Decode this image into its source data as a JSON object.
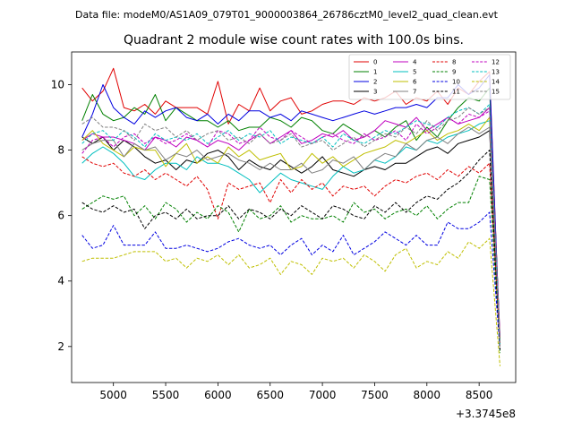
{
  "chart_data": {
    "type": "line",
    "suptitle": "Data file: modeM0/AS1A09_079T01_9000003864_26786cztM0_level2_quad_clean.evt",
    "title": "Quadrant 2 module wise count rates with 100.0s bins.",
    "xlabel": "",
    "ylabel": "",
    "x_offset_label": "+3.3745e8",
    "xlim": [
      4600,
      8850
    ],
    "ylim": [
      0.9,
      11.0
    ],
    "xticks": [
      5000,
      5500,
      6000,
      6500,
      7000,
      7500,
      8000,
      8500
    ],
    "yticks": [
      2,
      4,
      6,
      8,
      10
    ],
    "grid": false,
    "legend_position": "top-right",
    "legend_columns": 4,
    "x": [
      4700,
      4800,
      4900,
      5000,
      5100,
      5200,
      5300,
      5400,
      5500,
      5600,
      5700,
      5800,
      5900,
      6000,
      6100,
      6200,
      6300,
      6400,
      6500,
      6600,
      6700,
      6800,
      6900,
      7000,
      7100,
      7200,
      7300,
      7400,
      7500,
      7600,
      7700,
      7800,
      7900,
      8000,
      8100,
      8200,
      8300,
      8400,
      8500,
      8600,
      8700
    ],
    "series": [
      {
        "name": "0",
        "color": "#e00000",
        "dash": "solid",
        "values": [
          9.9,
          9.5,
          9.8,
          10.5,
          9.3,
          9.2,
          9.4,
          9.1,
          9.5,
          9.3,
          9.3,
          9.3,
          9.1,
          10.1,
          8.8,
          9.4,
          9.2,
          9.9,
          9.2,
          9.5,
          9.6,
          9.1,
          9.2,
          9.4,
          9.5,
          9.5,
          9.4,
          9.6,
          9.5,
          9.6,
          9.8,
          9.4,
          9.6,
          9.5,
          9.8,
          9.4,
          9.9,
          9.7,
          10.1,
          10.4,
          2.0
        ]
      },
      {
        "name": "1",
        "color": "#008000",
        "dash": "solid",
        "values": [
          8.9,
          9.7,
          9.1,
          8.9,
          9.0,
          9.3,
          9.1,
          9.7,
          8.9,
          9.3,
          9.1,
          8.9,
          8.9,
          8.7,
          8.9,
          8.6,
          8.7,
          8.7,
          9.0,
          8.9,
          8.7,
          9.0,
          8.9,
          8.6,
          8.5,
          8.8,
          8.6,
          8.4,
          8.6,
          8.4,
          8.7,
          8.9,
          8.3,
          8.7,
          8.4,
          8.9,
          9.3,
          9.6,
          9.5,
          9.9,
          2.2
        ]
      },
      {
        "name": "2",
        "color": "#0000e0",
        "dash": "solid",
        "values": [
          8.4,
          9.1,
          10.0,
          9.3,
          9.0,
          8.8,
          9.2,
          9.0,
          9.2,
          9.3,
          9.0,
          8.9,
          9.1,
          8.8,
          9.1,
          8.9,
          9.2,
          9.2,
          9.0,
          9.1,
          8.9,
          9.2,
          9.1,
          9.0,
          8.9,
          9.0,
          9.1,
          9.2,
          9.1,
          9.2,
          9.3,
          9.3,
          9.4,
          9.3,
          9.6,
          9.6,
          10.0,
          9.7,
          9.9,
          10.3,
          2.0
        ]
      },
      {
        "name": "3",
        "color": "#000000",
        "dash": "solid",
        "values": [
          8.4,
          8.2,
          8.4,
          8.0,
          8.3,
          8.1,
          7.8,
          7.6,
          7.7,
          7.4,
          7.7,
          7.6,
          7.9,
          8.0,
          7.8,
          7.4,
          7.7,
          7.5,
          7.4,
          7.7,
          7.5,
          7.3,
          7.5,
          7.8,
          7.4,
          7.3,
          7.2,
          7.4,
          7.5,
          7.4,
          7.6,
          7.6,
          7.8,
          8.0,
          8.1,
          7.9,
          8.2,
          8.3,
          8.4,
          8.6,
          2.0
        ]
      },
      {
        "name": "4",
        "color": "#bf00bf",
        "dash": "solid",
        "values": [
          8.3,
          8.5,
          8.4,
          8.4,
          8.3,
          8.2,
          8.0,
          8.4,
          8.3,
          8.1,
          8.4,
          8.3,
          8.1,
          8.3,
          8.2,
          8.0,
          8.3,
          8.5,
          8.2,
          8.4,
          8.6,
          8.2,
          8.3,
          8.5,
          8.4,
          8.6,
          8.3,
          8.4,
          8.6,
          8.9,
          8.8,
          8.7,
          9.0,
          8.6,
          8.8,
          9.0,
          8.8,
          8.9,
          9.0,
          9.3,
          2.3
        ]
      },
      {
        "name": "5",
        "color": "#00bfbf",
        "dash": "solid",
        "values": [
          7.6,
          7.9,
          8.1,
          7.9,
          7.6,
          7.2,
          7.1,
          7.4,
          7.6,
          7.6,
          7.4,
          7.8,
          7.6,
          7.6,
          7.5,
          7.3,
          7.1,
          6.7,
          7.0,
          7.3,
          7.1,
          7.0,
          6.9,
          6.8,
          7.2,
          7.5,
          7.3,
          7.4,
          7.7,
          7.6,
          7.8,
          8.1,
          8.0,
          8.3,
          8.2,
          8.4,
          8.5,
          8.6,
          8.8,
          8.9,
          2.0
        ]
      },
      {
        "name": "6",
        "color": "#bfbf00",
        "dash": "solid",
        "values": [
          8.3,
          8.6,
          8.2,
          8.0,
          7.8,
          8.1,
          8.0,
          8.0,
          7.5,
          7.9,
          8.2,
          7.6,
          7.8,
          7.6,
          8.1,
          7.8,
          8.0,
          7.7,
          7.8,
          7.9,
          7.4,
          7.5,
          7.9,
          7.6,
          7.8,
          7.5,
          7.7,
          7.9,
          8.0,
          8.1,
          8.3,
          8.2,
          8.4,
          8.6,
          8.3,
          8.5,
          8.6,
          8.8,
          8.6,
          9.0,
          2.1
        ]
      },
      {
        "name": "7",
        "color": "#808080",
        "dash": "solid",
        "values": [
          8.0,
          8.2,
          8.3,
          8.3,
          7.8,
          8.2,
          8.0,
          8.1,
          7.7,
          7.9,
          7.8,
          8.0,
          7.7,
          7.8,
          7.9,
          7.7,
          7.6,
          7.4,
          7.6,
          7.4,
          7.4,
          7.6,
          7.3,
          7.4,
          7.7,
          7.6,
          7.8,
          7.4,
          7.7,
          7.9,
          7.8,
          8.2,
          8.0,
          8.3,
          8.4,
          8.2,
          8.5,
          8.7,
          8.5,
          8.7,
          2.1
        ]
      },
      {
        "name": "8",
        "color": "#e00000",
        "dash": "dashed",
        "values": [
          7.8,
          7.6,
          7.5,
          7.6,
          7.3,
          7.2,
          7.4,
          7.1,
          7.3,
          7.1,
          6.9,
          7.2,
          6.8,
          5.9,
          7.0,
          6.8,
          6.9,
          7.0,
          6.4,
          7.1,
          6.7,
          7.1,
          6.8,
          7.0,
          6.6,
          6.9,
          6.8,
          6.9,
          6.6,
          6.9,
          7.1,
          7.0,
          7.2,
          7.3,
          7.1,
          7.4,
          7.2,
          7.5,
          7.3,
          7.6,
          2.0
        ]
      },
      {
        "name": "9",
        "color": "#008000",
        "dash": "dashed",
        "values": [
          6.2,
          6.4,
          6.6,
          6.5,
          6.6,
          6.0,
          6.3,
          5.9,
          6.4,
          6.2,
          5.8,
          6.1,
          5.9,
          6.3,
          6.1,
          5.5,
          6.2,
          5.9,
          6.0,
          6.3,
          5.8,
          6.0,
          5.9,
          5.9,
          6.0,
          5.8,
          6.4,
          6.1,
          6.2,
          5.9,
          6.1,
          6.2,
          6.0,
          6.3,
          5.9,
          6.2,
          6.4,
          6.4,
          7.2,
          7.1,
          1.8
        ]
      },
      {
        "name": "10",
        "color": "#0000e0",
        "dash": "dashed",
        "values": [
          5.4,
          5.0,
          5.1,
          5.7,
          5.1,
          5.1,
          5.1,
          5.5,
          5.0,
          5.0,
          5.1,
          5.0,
          4.9,
          5.0,
          5.2,
          5.3,
          5.1,
          5.0,
          5.1,
          4.8,
          5.1,
          5.3,
          4.8,
          5.1,
          4.9,
          5.4,
          4.8,
          5.0,
          5.2,
          5.5,
          5.3,
          5.1,
          5.4,
          5.1,
          5.1,
          5.8,
          5.6,
          5.6,
          5.8,
          6.1,
          1.9
        ]
      },
      {
        "name": "11",
        "color": "#000000",
        "dash": "dashed",
        "values": [
          6.4,
          6.2,
          6.1,
          6.3,
          6.1,
          6.2,
          5.6,
          6.0,
          6.1,
          5.9,
          6.2,
          5.9,
          6.0,
          6.0,
          6.3,
          5.9,
          6.2,
          6.1,
          5.9,
          6.2,
          6.0,
          6.3,
          6.1,
          5.9,
          6.3,
          6.2,
          6.0,
          5.9,
          6.3,
          6.1,
          6.4,
          6.1,
          6.4,
          6.6,
          6.5,
          6.8,
          7.0,
          7.3,
          7.7,
          8.0,
          1.9
        ]
      },
      {
        "name": "12",
        "color": "#bf00bf",
        "dash": "dashed",
        "values": [
          7.9,
          8.3,
          8.4,
          8.1,
          8.4,
          8.5,
          8.2,
          8.4,
          8.2,
          8.3,
          8.5,
          8.3,
          8.1,
          8.6,
          8.5,
          8.2,
          8.3,
          8.7,
          8.4,
          8.3,
          8.6,
          8.4,
          8.2,
          8.4,
          8.5,
          8.3,
          8.2,
          8.5,
          8.3,
          8.4,
          8.6,
          8.3,
          8.8,
          8.5,
          8.7,
          9.0,
          8.8,
          9.1,
          9.0,
          9.2,
          2.0
        ]
      },
      {
        "name": "13",
        "color": "#00bfbf",
        "dash": "dashed",
        "values": [
          8.2,
          8.5,
          8.6,
          8.3,
          8.6,
          8.4,
          8.1,
          8.5,
          8.3,
          8.4,
          8.3,
          8.5,
          8.2,
          8.4,
          8.6,
          8.3,
          8.5,
          8.4,
          8.6,
          8.2,
          8.4,
          8.3,
          8.2,
          8.4,
          8.1,
          8.5,
          8.3,
          8.2,
          8.4,
          8.6,
          8.5,
          8.7,
          8.9,
          8.8,
          8.7,
          9.0,
          9.2,
          9.3,
          9.1,
          9.4,
          2.0
        ]
      },
      {
        "name": "14",
        "color": "#bfbf00",
        "dash": "dashed",
        "values": [
          4.6,
          4.7,
          4.7,
          4.7,
          4.8,
          4.9,
          4.9,
          4.9,
          4.6,
          4.7,
          4.4,
          4.7,
          4.6,
          4.8,
          4.5,
          4.8,
          4.4,
          4.5,
          4.7,
          4.2,
          4.6,
          4.5,
          4.2,
          4.7,
          4.6,
          4.7,
          4.4,
          4.8,
          4.6,
          4.3,
          4.8,
          5.0,
          4.4,
          4.6,
          4.5,
          4.9,
          4.7,
          5.2,
          5.0,
          5.3,
          1.4
        ]
      },
      {
        "name": "15",
        "color": "#808080",
        "dash": "dashed",
        "values": [
          8.8,
          9.0,
          8.7,
          8.7,
          8.6,
          8.3,
          8.8,
          8.6,
          8.7,
          8.4,
          8.6,
          8.3,
          8.5,
          8.6,
          8.3,
          8.4,
          8.2,
          8.5,
          8.2,
          8.3,
          8.5,
          8.1,
          8.2,
          8.3,
          8.0,
          8.2,
          8.4,
          8.1,
          8.3,
          8.5,
          8.4,
          8.7,
          8.5,
          8.9,
          8.6,
          8.9,
          9.0,
          9.3,
          9.1,
          9.3,
          2.0
        ]
      }
    ]
  }
}
